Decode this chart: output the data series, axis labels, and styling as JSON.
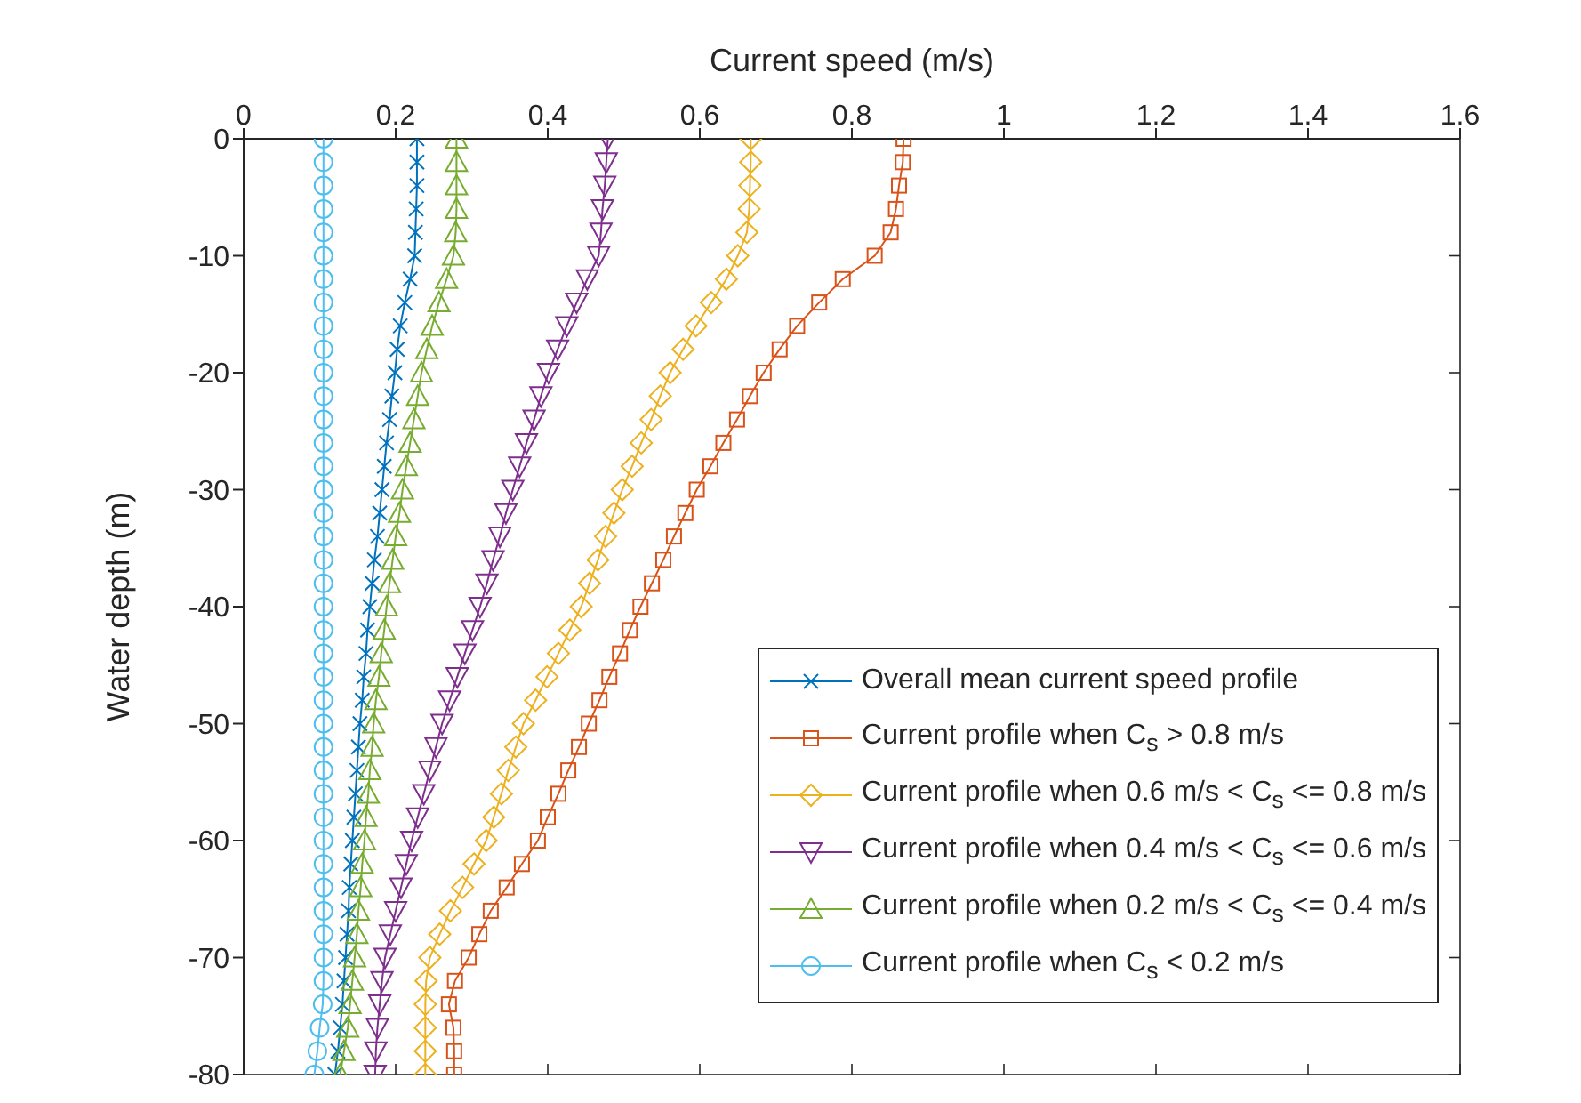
{
  "chart_data": {
    "type": "line",
    "xlabel": "Current speed (m/s)",
    "ylabel": "Water depth (m)",
    "xlim": [
      0,
      1.6
    ],
    "xticks": [
      0,
      0.2,
      0.4,
      0.6,
      0.8,
      1,
      1.2,
      1.4,
      1.6
    ],
    "ylim": [
      -80,
      0
    ],
    "yticks": [
      -80,
      -70,
      -60,
      -50,
      -40,
      -30,
      -20,
      -10,
      0
    ],
    "legend": "bottom right",
    "series": [
      {
        "name": "Overall mean current speed profile",
        "color": "#0072bd",
        "marker": "cross",
        "values": [
          0,
          -2,
          -4,
          -6,
          -8,
          -10,
          -12,
          -14,
          -16,
          -18,
          -20,
          -22,
          -24,
          -26,
          -28,
          -30,
          -32,
          -34,
          -36,
          -38,
          -40,
          -42,
          -44,
          -46,
          -48,
          -50,
          -52,
          -54,
          -56,
          -58,
          -60,
          -62,
          -64,
          -66,
          -68,
          -70,
          -72,
          -74,
          -76,
          -78,
          -80
        ],
        "x": [
          0.228,
          0.228,
          0.228,
          0.227,
          0.226,
          0.225,
          0.219,
          0.212,
          0.206,
          0.202,
          0.199,
          0.195,
          0.192,
          0.188,
          0.185,
          0.182,
          0.179,
          0.176,
          0.172,
          0.169,
          0.166,
          0.163,
          0.161,
          0.158,
          0.156,
          0.153,
          0.151,
          0.149,
          0.147,
          0.145,
          0.143,
          0.141,
          0.139,
          0.138,
          0.136,
          0.134,
          0.132,
          0.13,
          0.127,
          0.124,
          0.12
        ]
      },
      {
        "name": "Current profile when C$_{s}$ > 0.8 m/s",
        "color": "#d95319",
        "marker": "square",
        "values": [
          0,
          -2,
          -4,
          -6,
          -8,
          -10,
          -12,
          -14,
          -16,
          -18,
          -20,
          -22,
          -24,
          -26,
          -28,
          -30,
          -32,
          -34,
          -36,
          -38,
          -40,
          -42,
          -44,
          -46,
          -48,
          -50,
          -52,
          -54,
          -56,
          -58,
          -60,
          -62,
          -64,
          -66,
          -68,
          -70,
          -72,
          -74,
          -76,
          -78,
          -80
        ],
        "x": [
          0.868,
          0.867,
          0.862,
          0.858,
          0.851,
          0.83,
          0.788,
          0.757,
          0.728,
          0.705,
          0.684,
          0.666,
          0.649,
          0.631,
          0.614,
          0.596,
          0.581,
          0.566,
          0.552,
          0.537,
          0.522,
          0.508,
          0.495,
          0.481,
          0.468,
          0.454,
          0.441,
          0.427,
          0.414,
          0.4,
          0.387,
          0.366,
          0.346,
          0.325,
          0.31,
          0.296,
          0.278,
          0.27,
          0.276,
          0.277,
          0.277
        ]
      },
      {
        "name": "Current profile when 0.6 m/s < C$_{s}$ <= 0.8 m/s",
        "color": "#edb120",
        "marker": "diamond",
        "values": [
          0,
          -2,
          -4,
          -6,
          -8,
          -10,
          -12,
          -14,
          -16,
          -18,
          -20,
          -22,
          -24,
          -26,
          -28,
          -30,
          -32,
          -34,
          -36,
          -38,
          -40,
          -42,
          -44,
          -46,
          -48,
          -50,
          -52,
          -54,
          -56,
          -58,
          -60,
          -62,
          -64,
          -66,
          -68,
          -70,
          -72,
          -74,
          -76,
          -78,
          -80
        ],
        "x": [
          0.667,
          0.667,
          0.666,
          0.665,
          0.662,
          0.65,
          0.635,
          0.615,
          0.595,
          0.578,
          0.561,
          0.548,
          0.536,
          0.523,
          0.511,
          0.498,
          0.487,
          0.476,
          0.466,
          0.455,
          0.444,
          0.429,
          0.414,
          0.399,
          0.384,
          0.368,
          0.358,
          0.348,
          0.339,
          0.329,
          0.319,
          0.303,
          0.288,
          0.272,
          0.258,
          0.245,
          0.24,
          0.239,
          0.239,
          0.239,
          0.239
        ]
      },
      {
        "name": "Current profile when 0.4 m/s < C$_{s}$ <= 0.6 m/s",
        "color": "#7e2f8e",
        "marker": "triangle-down",
        "values": [
          0,
          -2,
          -4,
          -6,
          -8,
          -10,
          -12,
          -14,
          -16,
          -18,
          -20,
          -22,
          -24,
          -26,
          -28,
          -30,
          -32,
          -34,
          -36,
          -38,
          -40,
          -42,
          -44,
          -46,
          -48,
          -50,
          -52,
          -54,
          -56,
          -58,
          -60,
          -62,
          -64,
          -66,
          -68,
          -70,
          -72,
          -74,
          -76,
          -78,
          -80
        ],
        "x": [
          0.479,
          0.477,
          0.475,
          0.472,
          0.47,
          0.467,
          0.452,
          0.438,
          0.425,
          0.413,
          0.401,
          0.391,
          0.382,
          0.372,
          0.363,
          0.354,
          0.345,
          0.337,
          0.328,
          0.32,
          0.311,
          0.301,
          0.291,
          0.281,
          0.271,
          0.261,
          0.253,
          0.245,
          0.237,
          0.229,
          0.221,
          0.214,
          0.207,
          0.2,
          0.193,
          0.186,
          0.182,
          0.179,
          0.176,
          0.174,
          0.173
        ]
      },
      {
        "name": "Current profile when 0.2 m/s < C$_{s}$ <= 0.4 m/s",
        "color": "#77ac30",
        "marker": "triangle",
        "values": [
          0,
          -2,
          -4,
          -6,
          -8,
          -10,
          -12,
          -14,
          -16,
          -18,
          -20,
          -22,
          -24,
          -26,
          -28,
          -30,
          -32,
          -34,
          -36,
          -38,
          -40,
          -42,
          -44,
          -46,
          -48,
          -50,
          -52,
          -54,
          -56,
          -58,
          -60,
          -62,
          -64,
          -66,
          -68,
          -70,
          -72,
          -74,
          -76,
          -78,
          -80
        ],
        "x": [
          0.28,
          0.28,
          0.28,
          0.28,
          0.279,
          0.276,
          0.267,
          0.257,
          0.248,
          0.241,
          0.234,
          0.229,
          0.224,
          0.219,
          0.214,
          0.209,
          0.205,
          0.2,
          0.196,
          0.192,
          0.188,
          0.185,
          0.181,
          0.178,
          0.174,
          0.171,
          0.169,
          0.166,
          0.164,
          0.161,
          0.159,
          0.156,
          0.154,
          0.151,
          0.149,
          0.146,
          0.143,
          0.14,
          0.137,
          0.132,
          0.127
        ]
      },
      {
        "name": "Current profile when C$_{s}$ < 0.2 m/s",
        "color": "#4dbeee",
        "marker": "circle",
        "values": [
          0,
          -2,
          -4,
          -6,
          -8,
          -10,
          -12,
          -14,
          -16,
          -18,
          -20,
          -22,
          -24,
          -26,
          -28,
          -30,
          -32,
          -34,
          -36,
          -38,
          -40,
          -42,
          -44,
          -46,
          -48,
          -50,
          -52,
          -54,
          -56,
          -58,
          -60,
          -62,
          -64,
          -66,
          -68,
          -70,
          -72,
          -74,
          -76,
          -78,
          -80
        ],
        "x": [
          0.105,
          0.105,
          0.105,
          0.105,
          0.105,
          0.105,
          0.105,
          0.105,
          0.105,
          0.105,
          0.105,
          0.105,
          0.105,
          0.105,
          0.105,
          0.105,
          0.105,
          0.105,
          0.105,
          0.105,
          0.105,
          0.105,
          0.105,
          0.105,
          0.105,
          0.105,
          0.105,
          0.105,
          0.105,
          0.105,
          0.105,
          0.105,
          0.105,
          0.105,
          0.105,
          0.105,
          0.105,
          0.104,
          0.1,
          0.097,
          0.093
        ]
      }
    ]
  }
}
